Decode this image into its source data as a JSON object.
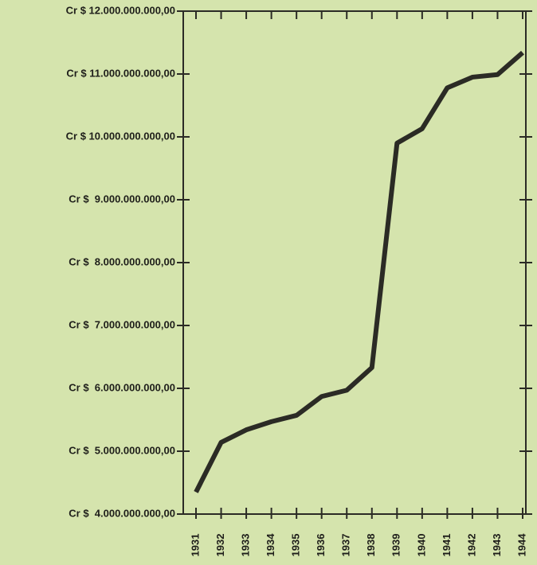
{
  "chart_data": {
    "type": "line",
    "categories": [
      "1931",
      "1932",
      "1933",
      "1934",
      "1935",
      "1936",
      "1937",
      "1938",
      "1939",
      "1940",
      "1941",
      "1942",
      "1943",
      "1944"
    ],
    "series": [
      {
        "color": "#2b2b25",
        "values": [
          4350000000,
          5140000000,
          5340000000,
          5470000000,
          5570000000,
          5870000000,
          5970000000,
          6330000000,
          9900000000,
          10130000000,
          10780000000,
          10950000000,
          10990000000,
          11340000000
        ]
      }
    ],
    "ylim": [
      4000000000,
      12000000000
    ],
    "yticks": [
      {
        "value": 4000000000,
        "label": "Cr $  4.000.000.000,00"
      },
      {
        "value": 5000000000,
        "label": "Cr $  5.000.000.000,00"
      },
      {
        "value": 6000000000,
        "label": "Cr $  6.000.000.000,00"
      },
      {
        "value": 7000000000,
        "label": "Cr $  7.000.000.000,00"
      },
      {
        "value": 8000000000,
        "label": "Cr $  8.000.000.000,00"
      },
      {
        "value": 9000000000,
        "label": "Cr $  9.000.000.000,00"
      },
      {
        "value": 10000000000,
        "label": "Cr $ 10.000.000.000,00"
      },
      {
        "value": 11000000000,
        "label": "Cr $ 11.000.000.000,00"
      },
      {
        "value": 12000000000,
        "label": "Cr $ 12.000.000.000,00"
      }
    ]
  }
}
